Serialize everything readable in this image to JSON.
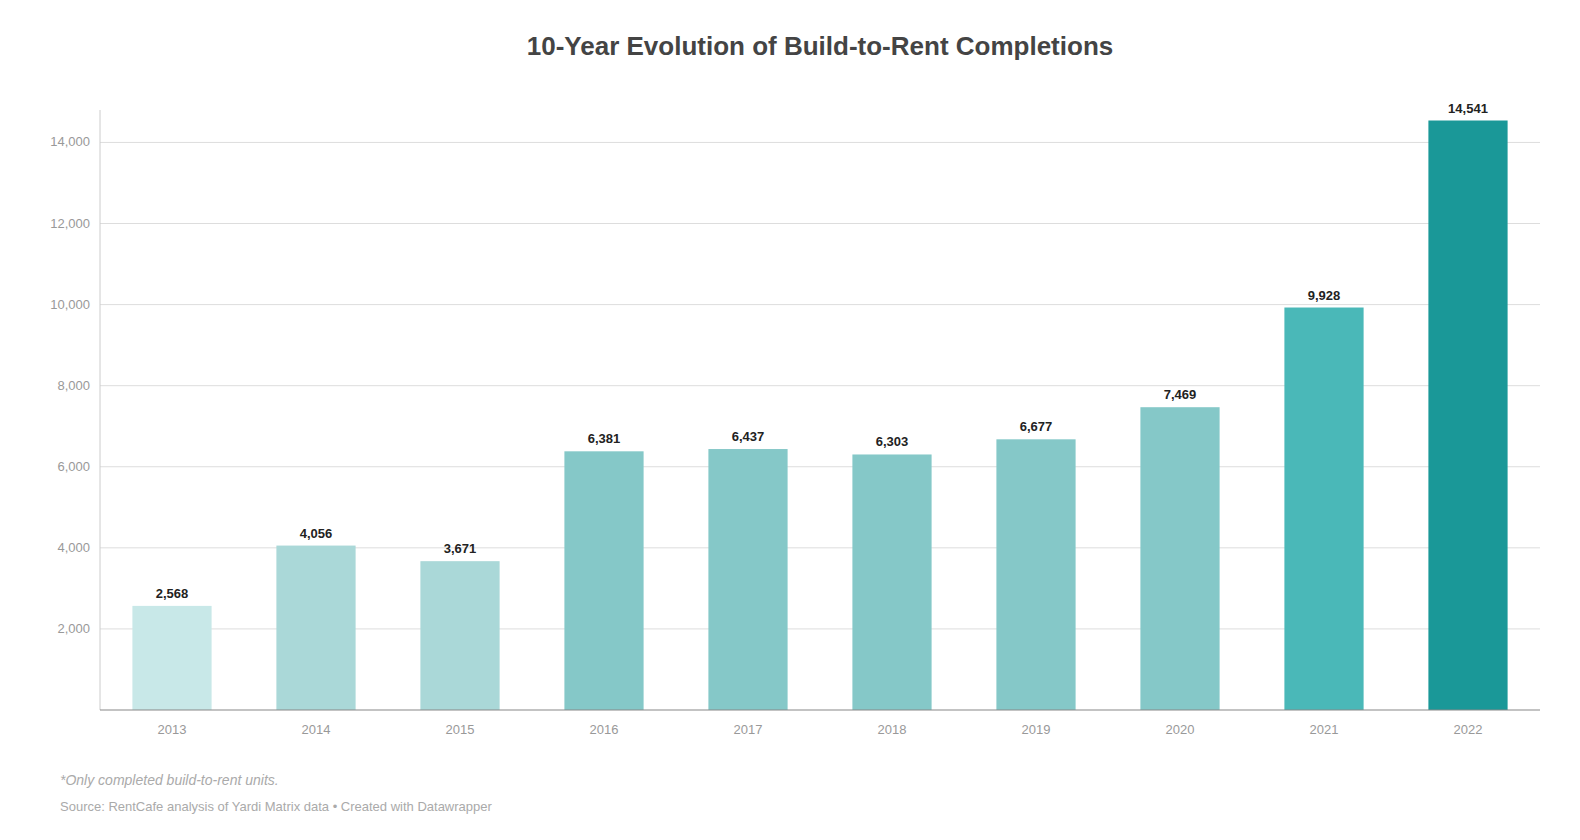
{
  "chart_data": {
    "type": "bar",
    "title": "10-Year Evolution of Build-to-Rent Completions",
    "categories": [
      "2013",
      "2014",
      "2015",
      "2016",
      "2017",
      "2018",
      "2019",
      "2020",
      "2021",
      "2022"
    ],
    "values": [
      2568,
      4056,
      3671,
      6381,
      6437,
      6303,
      6677,
      7469,
      9928,
      14541
    ],
    "value_labels": [
      "2,568",
      "4,056",
      "3,671",
      "6,381",
      "6,437",
      "6,303",
      "6,677",
      "7,469",
      "9,928",
      "14,541"
    ],
    "colors": [
      "#c8e8e8",
      "#aad8d8",
      "#aad8d8",
      "#85c8c8",
      "#85c8c8",
      "#85c8c8",
      "#85c8c8",
      "#85c8c8",
      "#4ab8b8",
      "#1a9898"
    ],
    "ylim": [
      0,
      14800
    ],
    "yticks": [
      {
        "value": 2000,
        "label": "2,000"
      },
      {
        "value": 4000,
        "label": "4,000"
      },
      {
        "value": 6000,
        "label": "6,000"
      },
      {
        "value": 8000,
        "label": "8,000"
      },
      {
        "value": 10000,
        "label": "10,000"
      },
      {
        "value": 12000,
        "label": "12,000"
      },
      {
        "value": 14000,
        "label": "14,000"
      }
    ],
    "grid": true,
    "data_labels": true,
    "annotations": [
      "*Only completed build-to-rent units.",
      "Source: RentCafe analysis of Yardi Matrix data • Created with Datawrapper"
    ]
  }
}
